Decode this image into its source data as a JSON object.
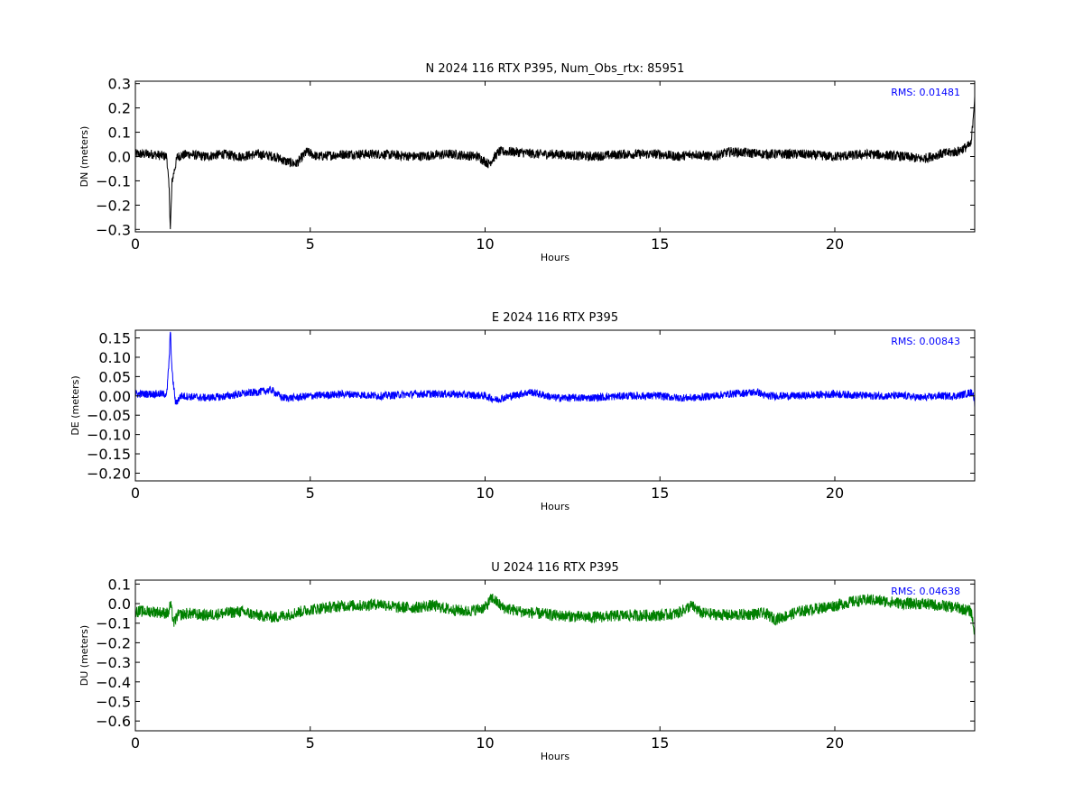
{
  "chart_data": [
    {
      "type": "line",
      "title": "N 2024 116 RTX  P395, Num_Obs_rtx: 85951",
      "xlabel": "Hours",
      "ylabel": "DN (meters)",
      "xlim": [
        0,
        24
      ],
      "ylim": [
        -0.31,
        0.31
      ],
      "xticks": [
        0,
        5,
        10,
        15,
        20
      ],
      "yticks": [
        0.3,
        0.2,
        0.1,
        0.0,
        -0.1,
        -0.2,
        -0.3
      ],
      "ytick_labels": [
        "0.3",
        "0.2",
        "0.1",
        "0.0",
        "−0.1",
        "−0.2",
        "−0.3"
      ],
      "xtick_labels": [
        "0",
        "5",
        "10",
        "15",
        "20"
      ],
      "color": "#000000",
      "annotation": "RMS:  0.01481",
      "annotation_color": "#0000ff",
      "series": [
        {
          "x": [
            0,
            0.5,
            0.9,
            0.97,
            1.0,
            1.05,
            1.2,
            1.5,
            2.0,
            2.5,
            3.0,
            3.5,
            4.0,
            4.3,
            4.6,
            4.9,
            5.2,
            6.0,
            7.0,
            8.0,
            9.0,
            9.8,
            10.1,
            10.4,
            10.8,
            11.5,
            12.0,
            13.0,
            14.0,
            15.0,
            15.5,
            16.0,
            16.5,
            17.0,
            18.0,
            19.0,
            20.0,
            21.0,
            22.0,
            22.5,
            23.0,
            23.5,
            23.9,
            24.0
          ],
          "y": [
            0.01,
            0.01,
            0.0,
            -0.15,
            -0.3,
            -0.1,
            0.0,
            0.01,
            0.0,
            0.01,
            0.0,
            0.01,
            0.0,
            -0.02,
            -0.03,
            0.02,
            0.0,
            0.01,
            0.01,
            0.0,
            0.01,
            0.0,
            -0.03,
            0.02,
            0.02,
            0.01,
            0.01,
            0.0,
            0.01,
            0.01,
            0.0,
            0.01,
            0.0,
            0.02,
            0.01,
            0.01,
            0.0,
            0.01,
            0.0,
            -0.01,
            0.01,
            0.02,
            0.05,
            0.25
          ],
          "band": 0.02
        }
      ]
    },
    {
      "type": "line",
      "title": "E 2024 116 RTX  P395",
      "xlabel": "Hours",
      "ylabel": "DE (meters)",
      "xlim": [
        0,
        24
      ],
      "ylim": [
        -0.22,
        0.17
      ],
      "xticks": [
        0,
        5,
        10,
        15,
        20
      ],
      "yticks": [
        0.15,
        0.1,
        0.05,
        0.0,
        -0.05,
        -0.1,
        -0.15,
        -0.2
      ],
      "ytick_labels": [
        "0.15",
        "0.10",
        "0.05",
        "0.00",
        "−0.05",
        "−0.10",
        "−0.15",
        "−0.20"
      ],
      "xtick_labels": [
        "0",
        "5",
        "10",
        "15",
        "20"
      ],
      "color": "#0000ff",
      "annotation": "RMS:  0.00843",
      "annotation_color": "#0000ff",
      "series": [
        {
          "x": [
            0,
            0.5,
            0.9,
            0.97,
            1.0,
            1.05,
            1.15,
            1.3,
            2.0,
            2.5,
            3.0,
            3.5,
            3.9,
            4.2,
            4.5,
            5.0,
            6.0,
            7.0,
            8.0,
            9.0,
            10.0,
            10.3,
            11.0,
            11.3,
            12.0,
            12.5,
            13.0,
            14.0,
            15.0,
            15.5,
            16.0,
            17.0,
            17.8,
            18.0,
            19.0,
            20.0,
            21.0,
            22.0,
            22.5,
            23.0,
            23.5,
            23.95,
            24.0
          ],
          "y": [
            0.005,
            0.005,
            0.005,
            0.1,
            0.17,
            0.06,
            -0.02,
            0.0,
            -0.005,
            -0.002,
            0.005,
            0.01,
            0.015,
            -0.005,
            -0.005,
            0.0,
            0.005,
            0.0,
            0.005,
            0.005,
            0.0,
            -0.01,
            0.005,
            0.01,
            -0.005,
            -0.005,
            -0.005,
            0.0,
            0.0,
            -0.005,
            -0.005,
            0.005,
            0.01,
            0.0,
            0.0,
            0.005,
            0.0,
            0.0,
            -0.005,
            0.0,
            0.0,
            0.01,
            -0.02
          ],
          "band": 0.01
        }
      ]
    },
    {
      "type": "line",
      "title": "U 2024 116 RTX  P395",
      "xlabel": "Hours",
      "ylabel": "DU (meters)",
      "xlim": [
        0,
        24
      ],
      "ylim": [
        -0.65,
        0.12
      ],
      "xticks": [
        0,
        5,
        10,
        15,
        20
      ],
      "yticks": [
        0.1,
        0.0,
        -0.1,
        -0.2,
        -0.3,
        -0.4,
        -0.5,
        -0.6
      ],
      "ytick_labels": [
        "0.1",
        "0.0",
        "−0.1",
        "−0.2",
        "−0.3",
        "−0.4",
        "−0.5",
        "−0.6"
      ],
      "xtick_labels": [
        "0",
        "5",
        "10",
        "15",
        "20"
      ],
      "color": "#008000",
      "annotation": "RMS:  0.04638",
      "annotation_color": "#0000ff",
      "series": [
        {
          "x": [
            0,
            0.5,
            0.95,
            1.0,
            1.1,
            1.2,
            1.5,
            2.0,
            2.5,
            3.0,
            3.5,
            4.0,
            4.5,
            5.0,
            5.5,
            6.0,
            6.5,
            7.0,
            7.5,
            8.0,
            8.5,
            9.0,
            9.5,
            10.0,
            10.2,
            10.5,
            11.0,
            12.0,
            13.0,
            14.0,
            15.0,
            15.5,
            15.9,
            16.2,
            17.0,
            18.0,
            18.3,
            19.0,
            20.0,
            20.5,
            21.0,
            21.5,
            22.0,
            22.5,
            23.0,
            23.5,
            23.9,
            24.0
          ],
          "y": [
            -0.04,
            -0.04,
            -0.05,
            0.0,
            -0.1,
            -0.06,
            -0.05,
            -0.06,
            -0.05,
            -0.04,
            -0.06,
            -0.07,
            -0.05,
            -0.03,
            -0.02,
            -0.01,
            -0.01,
            0.0,
            -0.02,
            -0.02,
            -0.01,
            -0.03,
            -0.04,
            -0.02,
            0.03,
            -0.02,
            -0.04,
            -0.06,
            -0.07,
            -0.06,
            -0.06,
            -0.05,
            -0.01,
            -0.05,
            -0.06,
            -0.05,
            -0.08,
            -0.04,
            -0.01,
            0.01,
            0.02,
            0.01,
            0.0,
            0.0,
            -0.01,
            -0.02,
            -0.04,
            -0.15
          ],
          "band": 0.03
        }
      ]
    }
  ]
}
